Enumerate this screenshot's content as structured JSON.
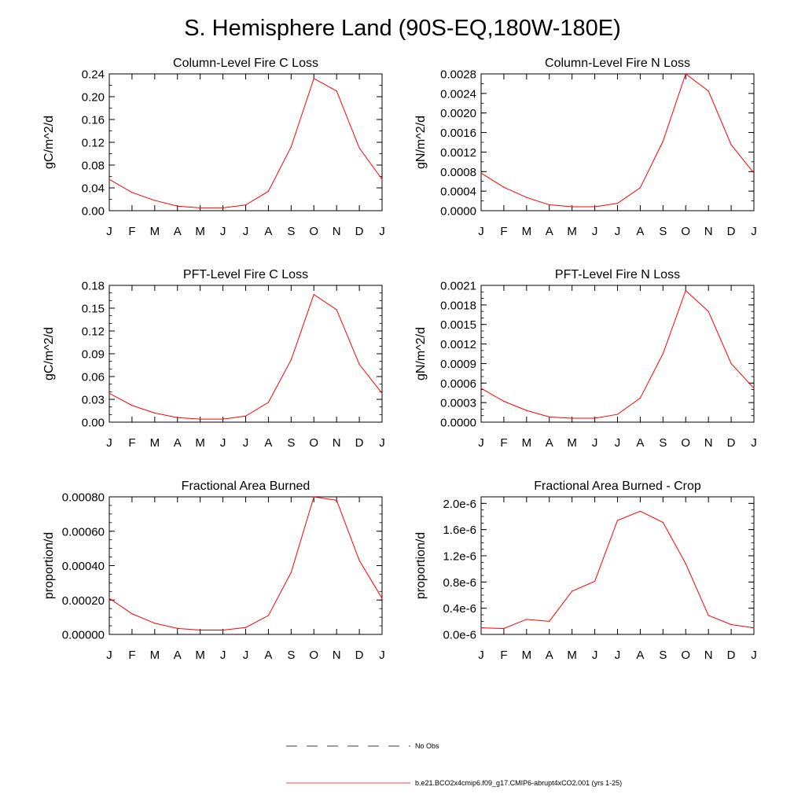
{
  "page": {
    "title": "S. Hemisphere Land (90S-EQ,180W-180E)"
  },
  "legend": [
    {
      "label": "No Obs",
      "color": "#000000",
      "style": "dashed"
    },
    {
      "label": "b.e21.BCO2x4cmip6.f09_g17.CMIP6-abrupt4xCO2.001 (yrs 1-25)",
      "color": "#ff0000",
      "style": "solid"
    }
  ],
  "chart_data": [
    {
      "type": "line",
      "title": "Column-Level Fire C Loss",
      "ylabel": "gC/m^2/d",
      "categories": [
        "J",
        "F",
        "M",
        "A",
        "M",
        "J",
        "J",
        "A",
        "S",
        "O",
        "N",
        "D",
        "J"
      ],
      "ylim": [
        0,
        0.24
      ],
      "yticks": [
        "0.00",
        "0.04",
        "0.08",
        "0.12",
        "0.16",
        "0.20",
        "0.24"
      ],
      "yminor": 2,
      "series": [
        {
          "color": "#ff0000",
          "values": [
            0.055,
            0.032,
            0.018,
            0.008,
            0.005,
            0.005,
            0.01,
            0.034,
            0.112,
            0.232,
            0.21,
            0.11,
            0.055
          ]
        }
      ]
    },
    {
      "type": "line",
      "title": "Column-Level Fire N Loss",
      "ylabel": "gN/m^2/d",
      "categories": [
        "J",
        "F",
        "M",
        "A",
        "M",
        "J",
        "J",
        "A",
        "S",
        "O",
        "N",
        "D",
        "J"
      ],
      "ylim": [
        0,
        0.0028
      ],
      "yticks": [
        "0.0000",
        "0.0004",
        "0.0008",
        "0.0012",
        "0.0016",
        "0.0020",
        "0.0024",
        "0.0028"
      ],
      "yminor": 2,
      "series": [
        {
          "color": "#ff0000",
          "values": [
            0.00077,
            0.00048,
            0.00027,
            0.00012,
            8e-05,
            8e-05,
            0.00015,
            0.00047,
            0.00142,
            0.0028,
            0.00245,
            0.00135,
            0.00077
          ]
        }
      ]
    },
    {
      "type": "line",
      "title": "PFT-Level Fire C Loss",
      "ylabel": "gC/m^2/d",
      "categories": [
        "J",
        "F",
        "M",
        "A",
        "M",
        "J",
        "J",
        "A",
        "S",
        "O",
        "N",
        "D",
        "J"
      ],
      "ylim": [
        0,
        0.18
      ],
      "yticks": [
        "0.00",
        "0.03",
        "0.06",
        "0.09",
        "0.12",
        "0.15",
        "0.18"
      ],
      "yminor": 3,
      "series": [
        {
          "color": "#ff0000",
          "values": [
            0.038,
            0.022,
            0.012,
            0.006,
            0.004,
            0.004,
            0.008,
            0.026,
            0.082,
            0.168,
            0.148,
            0.076,
            0.038
          ]
        }
      ]
    },
    {
      "type": "line",
      "title": "PFT-Level Fire N Loss",
      "ylabel": "gN/m^2/d",
      "categories": [
        "J",
        "F",
        "M",
        "A",
        "M",
        "J",
        "J",
        "A",
        "S",
        "O",
        "N",
        "D",
        "J"
      ],
      "ylim": [
        0,
        0.0021
      ],
      "yticks": [
        "0.0000",
        "0.0003",
        "0.0006",
        "0.0009",
        "0.0012",
        "0.0015",
        "0.0018",
        "0.0021"
      ],
      "yminor": 3,
      "series": [
        {
          "color": "#ff0000",
          "values": [
            0.00052,
            0.00032,
            0.00018,
            8e-05,
            6e-05,
            6e-05,
            0.00012,
            0.00037,
            0.00105,
            0.00202,
            0.0017,
            0.0009,
            0.00052
          ]
        }
      ]
    },
    {
      "type": "line",
      "title": "Fractional Area Burned",
      "ylabel": "proportion/d",
      "categories": [
        "J",
        "F",
        "M",
        "A",
        "M",
        "J",
        "J",
        "A",
        "S",
        "O",
        "N",
        "D",
        "J"
      ],
      "ylim": [
        0,
        0.0008
      ],
      "yticks": [
        "0.00000",
        "0.00020",
        "0.00040",
        "0.00060",
        "0.00080"
      ],
      "yminor": 4,
      "series": [
        {
          "color": "#ff0000",
          "values": [
            0.00021,
            0.00012,
            6.5e-05,
            3.5e-05,
            2.5e-05,
            2.5e-05,
            4e-05,
            0.00011,
            0.00036,
            0.0008,
            0.00078,
            0.00043,
            0.00021
          ]
        }
      ]
    },
    {
      "type": "line",
      "title": "Fractional Area Burned - Crop",
      "ylabel": "proportion/d",
      "categories": [
        "J",
        "F",
        "M",
        "A",
        "M",
        "J",
        "J",
        "A",
        "S",
        "O",
        "N",
        "D",
        "J"
      ],
      "ylim": [
        0,
        2.1e-06
      ],
      "yticks": [
        "0.0e-6",
        "0.4e-6",
        "0.8e-6",
        "1.2e-6",
        "1.6e-6",
        "2.0e-6"
      ],
      "yminor": 4,
      "series": [
        {
          "color": "#ff0000",
          "values": [
            1e-07,
            9e-08,
            2.3e-07,
            2e-07,
            6.6e-07,
            8.1e-07,
            1.74e-06,
            1.88e-06,
            1.71e-06,
            1.08e-06,
            2.9e-07,
            1.5e-07,
            1e-07
          ]
        }
      ]
    }
  ]
}
